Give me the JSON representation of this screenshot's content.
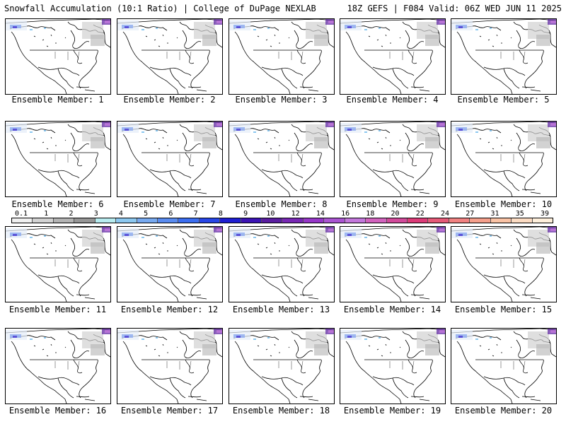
{
  "header": {
    "title_left": "Snowfall Accumulation (10:1 Ratio) | College of DuPage NEXLAB",
    "title_right": "18Z GEFS | F084 Valid: 06Z WED JUN 11 2025"
  },
  "panels": [
    {
      "label": "Ensemble Member: 1"
    },
    {
      "label": "Ensemble Member: 2"
    },
    {
      "label": "Ensemble Member: 3"
    },
    {
      "label": "Ensemble Member: 4"
    },
    {
      "label": "Ensemble Member: 5"
    },
    {
      "label": "Ensemble Member: 6"
    },
    {
      "label": "Ensemble Member: 7"
    },
    {
      "label": "Ensemble Member: 8"
    },
    {
      "label": "Ensemble Member: 9"
    },
    {
      "label": "Ensemble Member: 10"
    },
    {
      "label": "Ensemble Member: 11"
    },
    {
      "label": "Ensemble Member: 12"
    },
    {
      "label": "Ensemble Member: 13"
    },
    {
      "label": "Ensemble Member: 14"
    },
    {
      "label": "Ensemble Member: 15"
    },
    {
      "label": "Ensemble Member: 16"
    },
    {
      "label": "Ensemble Member: 17"
    },
    {
      "label": "Ensemble Member: 18"
    },
    {
      "label": "Ensemble Member: 19"
    },
    {
      "label": "Ensemble Member: 20"
    }
  ],
  "colorbar": {
    "labels": [
      "0.1",
      "1",
      "2",
      "3",
      "4",
      "5",
      "6",
      "7",
      "8",
      "9",
      "10",
      "12",
      "14",
      "16",
      "18",
      "20",
      "22",
      "24",
      "27",
      "31",
      "35",
      "39"
    ],
    "colors": [
      "#f0f0f0",
      "#d2d2d2",
      "#b4b4b4",
      "#969696",
      "#b8ecf0",
      "#8cc8f0",
      "#78aaf0",
      "#5a8cf0",
      "#3c6ef0",
      "#2846e6",
      "#1e1ed2",
      "#3c14b4",
      "#5a1ea0",
      "#7828b4",
      "#9637c8",
      "#aa55d2",
      "#c378dc",
      "#d264be",
      "#d24b9b",
      "#dc3c78",
      "#e65a78",
      "#f08282",
      "#f5a08c",
      "#fac3a5",
      "#fcdcc3",
      "#fff0dc"
    ]
  }
}
